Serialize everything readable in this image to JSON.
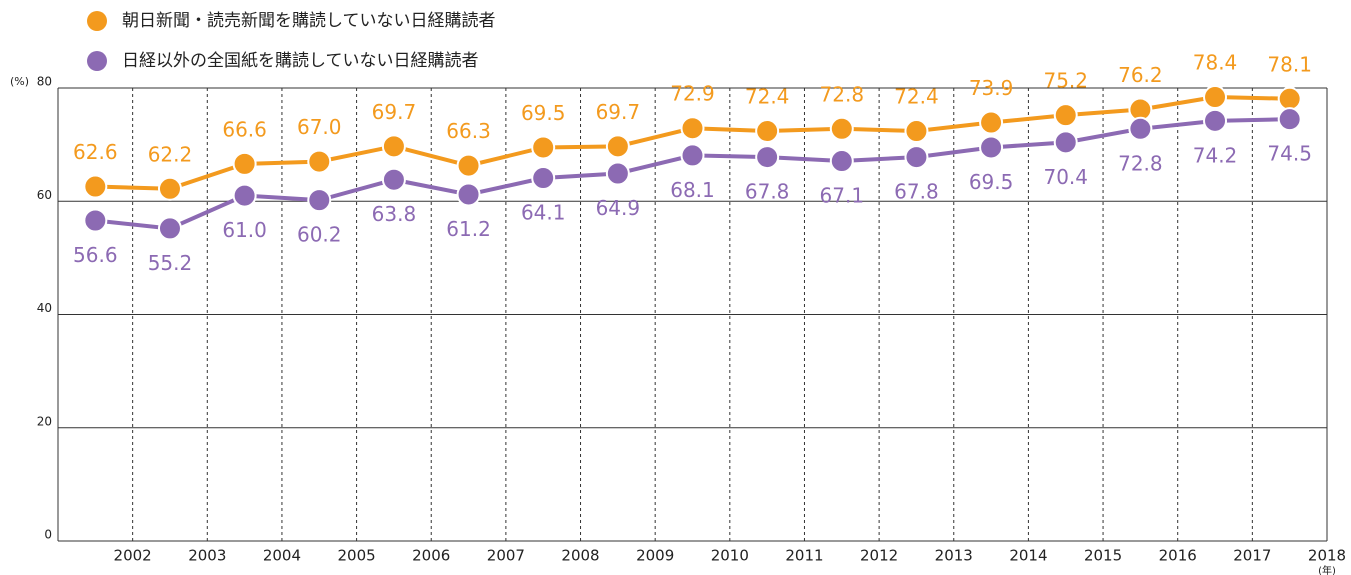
{
  "chart_data": {
    "type": "line",
    "categories": [
      "2002",
      "2003",
      "2004",
      "2005",
      "2006",
      "2007",
      "2008",
      "2009",
      "2010",
      "2011",
      "2012",
      "2013",
      "2014",
      "2015",
      "2016",
      "2017",
      "2018"
    ],
    "series": [
      {
        "name": "朝日新聞・読売新聞を購読していない日経購読者",
        "color": "#f39a1e",
        "values": [
          62.6,
          62.2,
          66.6,
          67.0,
          69.7,
          66.3,
          69.5,
          69.7,
          72.9,
          72.4,
          72.8,
          72.4,
          73.9,
          75.2,
          76.2,
          78.4,
          78.1
        ],
        "value_labels": [
          "62.6",
          "62.2",
          "66.6",
          "67.0",
          "69.7",
          "66.3",
          "69.5",
          "69.7",
          "72.9",
          "72.4",
          "72.8",
          "72.4",
          "73.9",
          "75.2",
          "76.2",
          "78.4",
          "78.1"
        ]
      },
      {
        "name": "日経以外の全国紙を購読していない日経購読者",
        "color": "#8c6ab3",
        "values": [
          56.6,
          55.2,
          61.0,
          60.2,
          63.8,
          61.2,
          64.1,
          64.9,
          68.1,
          67.8,
          67.1,
          67.8,
          69.5,
          70.4,
          72.8,
          74.2,
          74.5
        ],
        "value_labels": [
          "56.6",
          "55.2",
          "61.0",
          "60.2",
          "63.8",
          "61.2",
          "64.1",
          "64.9",
          "68.1",
          "67.8",
          "67.1",
          "67.8",
          "69.5",
          "70.4",
          "72.8",
          "74.2",
          "74.5"
        ]
      }
    ],
    "ylim": [
      0,
      80
    ],
    "yticks": [
      0,
      20,
      40,
      60,
      80
    ],
    "y_unit": "(%)",
    "x_unit": "(年)",
    "grid": true
  }
}
